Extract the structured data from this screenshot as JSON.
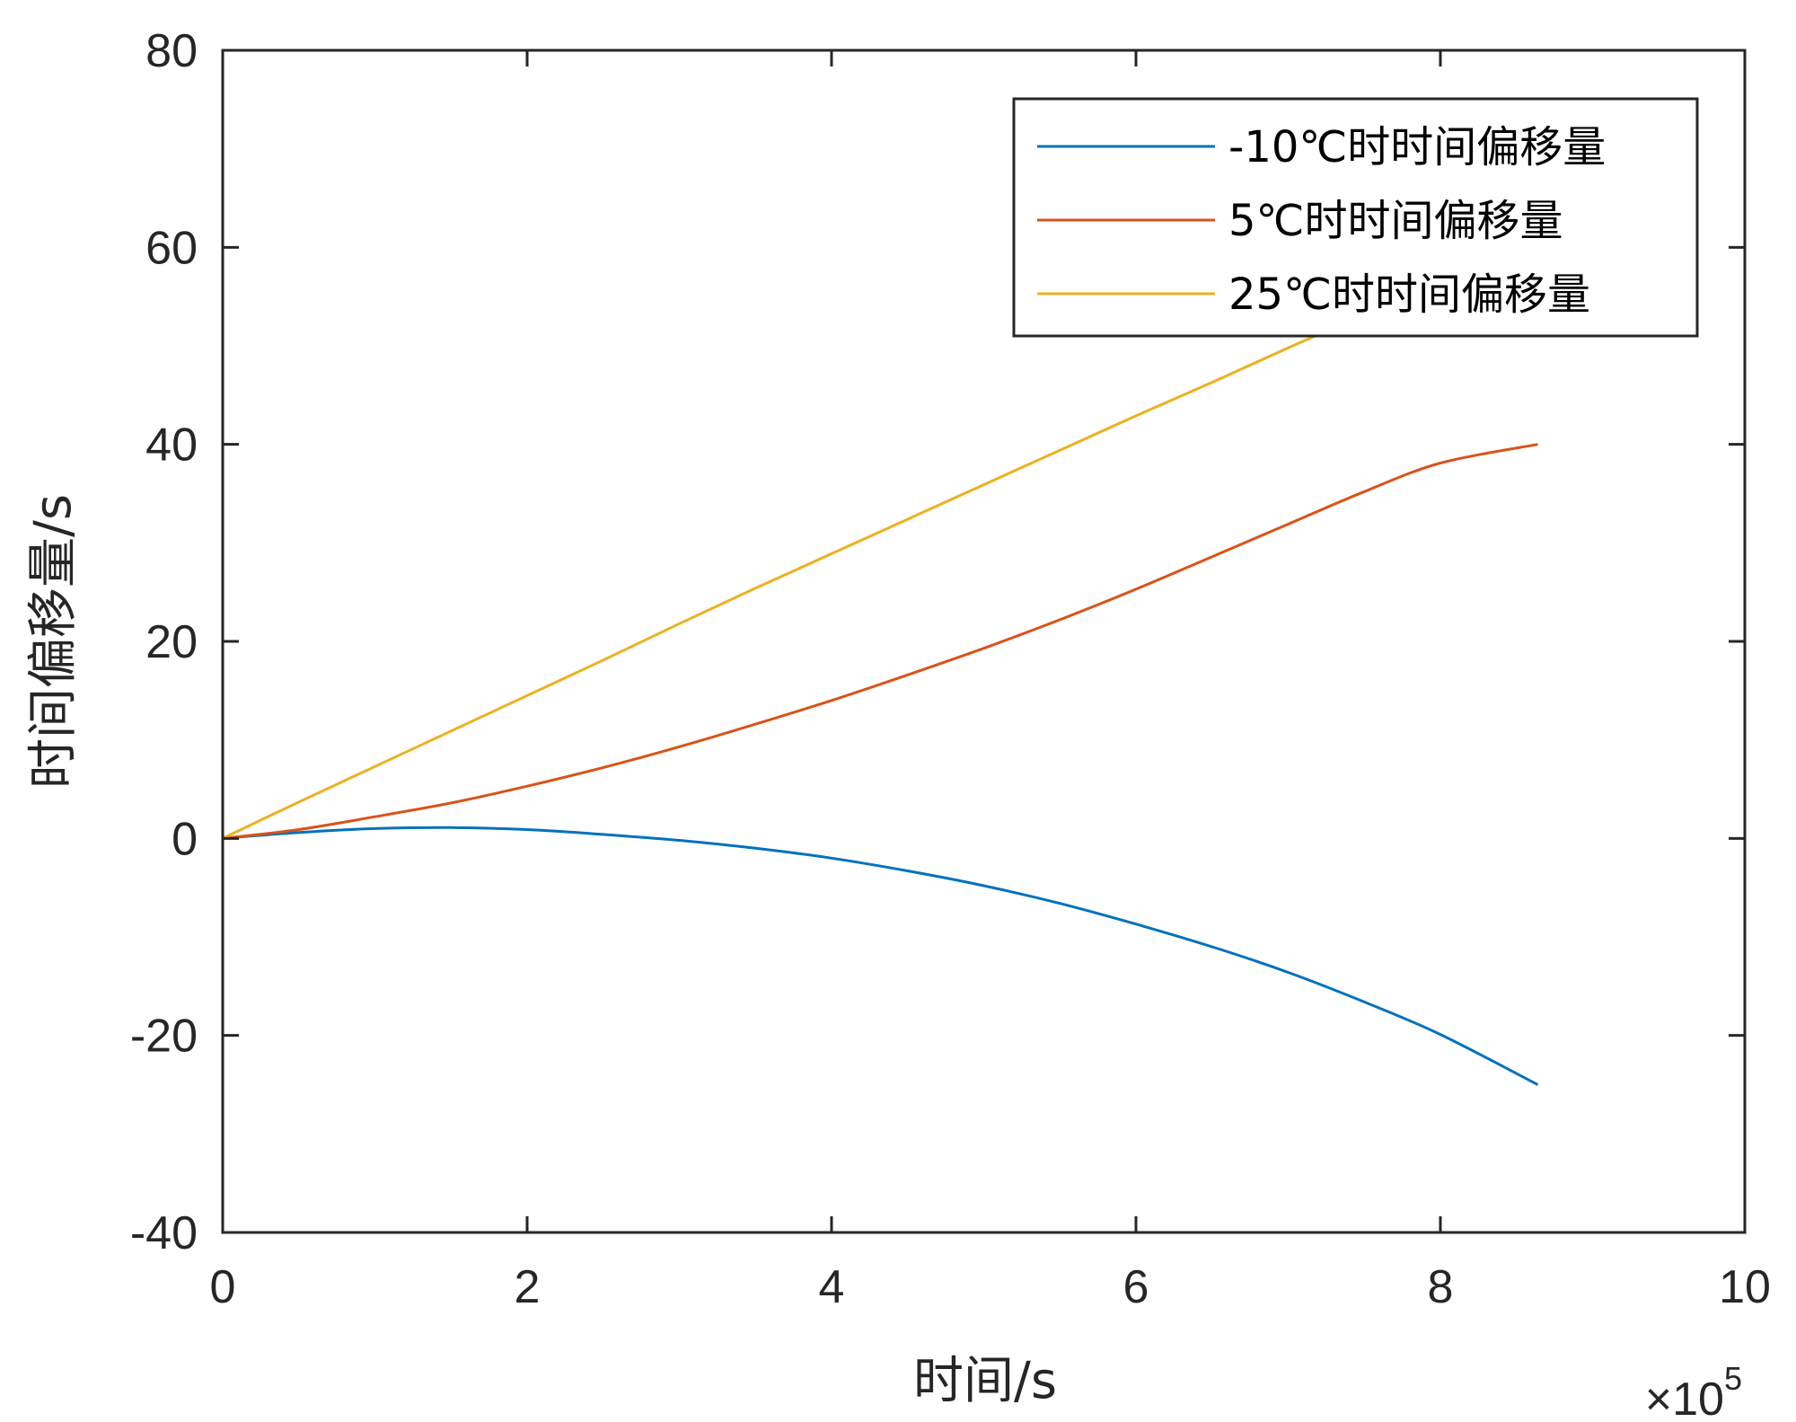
{
  "chart_data": {
    "type": "line",
    "xlabel": "时间/s",
    "ylabel": "时间偏移量/s",
    "x_exponent_label": {
      "times": "×10",
      "power": "5"
    },
    "xlim": [
      0,
      10
    ],
    "ylim": [
      -40,
      80
    ],
    "x_ticks": [
      "0",
      "2",
      "4",
      "6",
      "8",
      "10"
    ],
    "y_ticks": [
      "-40",
      "-20",
      "0",
      "20",
      "40",
      "60",
      "80"
    ],
    "grid": false,
    "legend_position": "top-right",
    "x": [
      0,
      0.5,
      1,
      1.5,
      2,
      2.5,
      3,
      3.5,
      4,
      4.5,
      5,
      5.5,
      6,
      6.5,
      7,
      7.5,
      8,
      8.64
    ],
    "series": [
      {
        "name": "-10℃时时间偏移量",
        "color": "#0072BD",
        "values": [
          0,
          0.6,
          1.0,
          1.1,
          0.9,
          0.4,
          -0.2,
          -1.0,
          -2.0,
          -3.3,
          -4.8,
          -6.6,
          -8.7,
          -11.0,
          -13.6,
          -16.6,
          -19.9,
          -25.0
        ]
      },
      {
        "name": "5℃时时间偏移量",
        "color": "#D95319",
        "values": [
          0,
          0.9,
          2.2,
          3.6,
          5.3,
          7.2,
          9.3,
          11.6,
          14.0,
          16.6,
          19.3,
          22.2,
          25.3,
          28.6,
          31.9,
          35.2,
          38.1,
          40.0
        ]
      },
      {
        "name": "25℃时时间偏移量",
        "color": "#EDB120",
        "values": [
          0,
          3.7,
          7.3,
          10.9,
          14.5,
          18.1,
          21.8,
          25.4,
          28.9,
          32.4,
          35.9,
          39.4,
          42.9,
          46.3,
          49.8,
          53.2,
          56.6,
          61.0
        ]
      }
    ]
  }
}
